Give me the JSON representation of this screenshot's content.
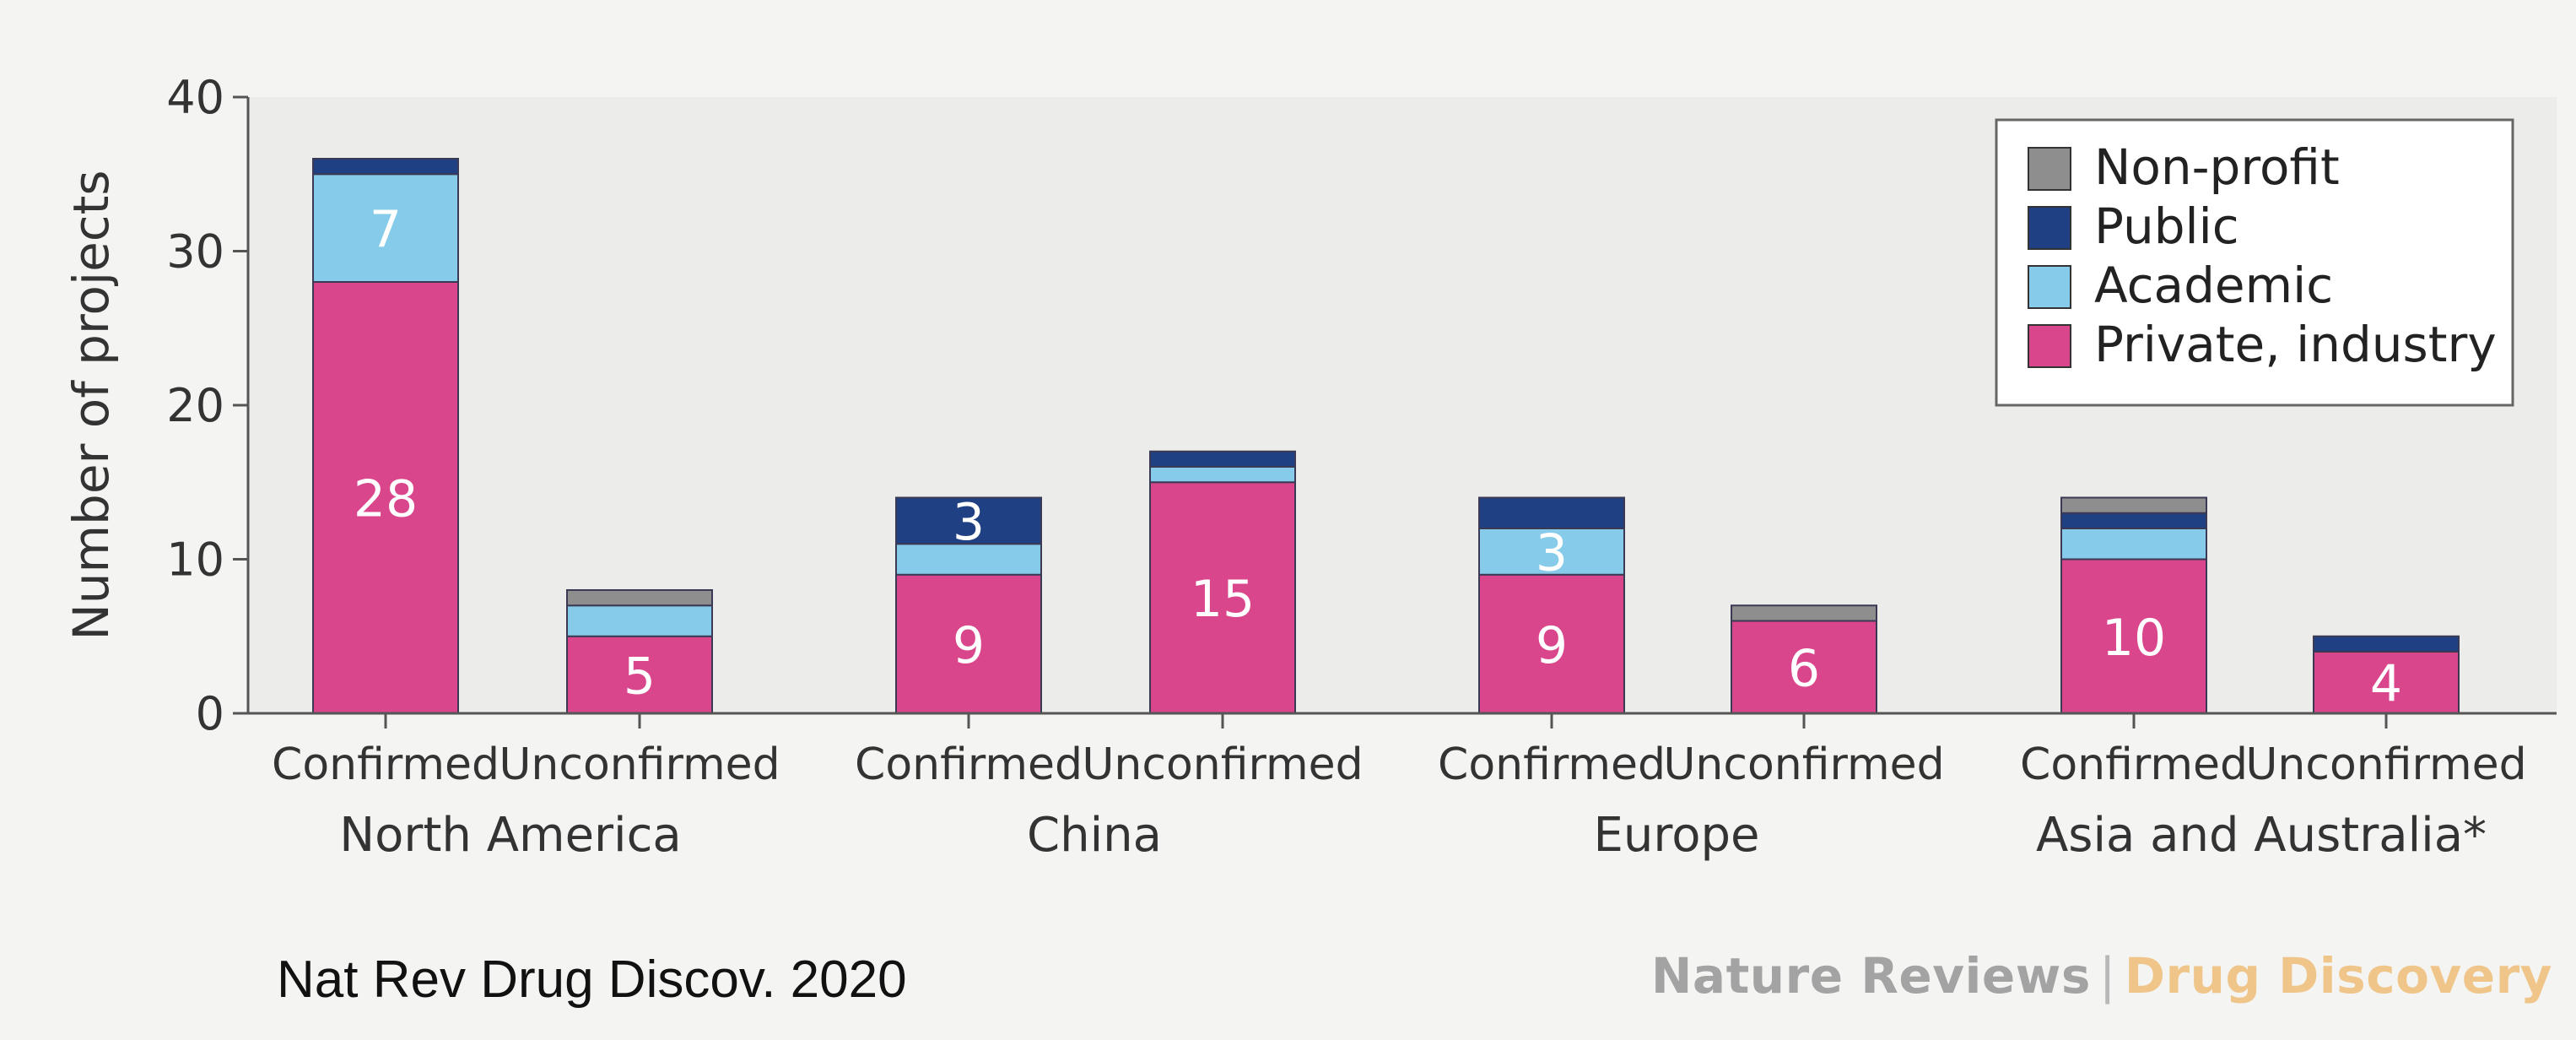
{
  "chart_data": {
    "type": "bar",
    "stacked": true,
    "ylabel": "Number of projects",
    "ylim": [
      0,
      40
    ],
    "yticks": [
      0,
      10,
      20,
      30,
      40
    ],
    "grid": false,
    "legend_position": "top-right",
    "groups": [
      {
        "name": "North America",
        "categories": [
          "Confirmed",
          "Unconfirmed"
        ]
      },
      {
        "name": "China",
        "categories": [
          "Confirmed",
          "Unconfirmed"
        ]
      },
      {
        "name": "Europe",
        "categories": [
          "Confirmed",
          "Unconfirmed"
        ]
      },
      {
        "name": "Asia and Australia*",
        "categories": [
          "Confirmed",
          "Unconfirmed"
        ]
      }
    ],
    "series": [
      {
        "name": "Private, industry",
        "color": "#d9468c",
        "values": [
          28,
          5,
          9,
          15,
          9,
          6,
          10,
          4
        ],
        "labels": [
          "28",
          "5",
          "9",
          "15",
          "9",
          "6",
          "10",
          "4"
        ]
      },
      {
        "name": "Academic",
        "color": "#86cbe9",
        "values": [
          7,
          2,
          2,
          1,
          3,
          0,
          2,
          0
        ],
        "labels": [
          "7",
          "",
          "",
          "",
          "3",
          "",
          "",
          ""
        ]
      },
      {
        "name": "Public",
        "color": "#1f4183",
        "values": [
          1,
          0,
          3,
          1,
          2,
          0,
          1,
          1
        ],
        "labels": [
          "",
          "",
          "3",
          "",
          "",
          "",
          "",
          ""
        ]
      },
      {
        "name": "Non-profit",
        "color": "#8e8e8e",
        "values": [
          0,
          1,
          0,
          0,
          0,
          1,
          1,
          0
        ],
        "labels": [
          "",
          "",
          "",
          "",
          "",
          "",
          "",
          ""
        ]
      }
    ],
    "legend_order": [
      "Non-profit",
      "Public",
      "Academic",
      "Private, industry"
    ]
  },
  "source": "Nat Rev Drug Discov. 2020",
  "brand": {
    "part1": "Nature Reviews",
    "separator": "|",
    "part2": "Drug Discovery"
  }
}
